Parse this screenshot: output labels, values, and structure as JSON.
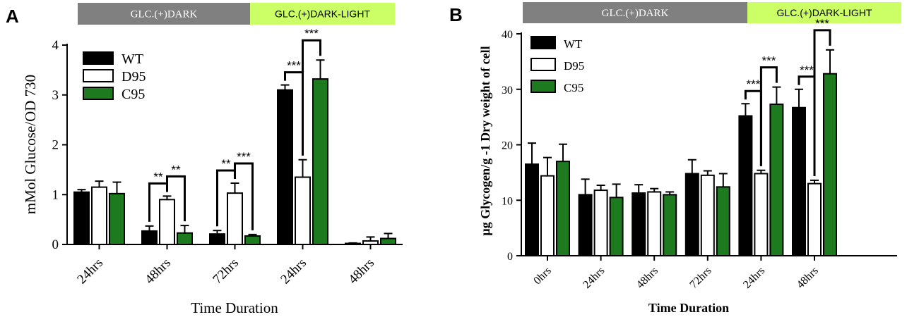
{
  "colors": {
    "WT": "#000000",
    "D95": "#ffffff",
    "C95": "#1e7a1e",
    "dark_band": "#808080",
    "light_band": "#ccff66"
  },
  "chart_data": [
    {
      "panel": "A",
      "type": "bar",
      "phases": [
        {
          "label": "GLC.(+)DARK",
          "span": [
            0,
            3
          ]
        },
        {
          "label": "GLC.(+)DARK-LIGHT",
          "span": [
            3,
            5
          ]
        }
      ],
      "categories": [
        "24hrs",
        "48hrs",
        "72hrs",
        "24hrs",
        "48hrs"
      ],
      "series": [
        {
          "name": "WT",
          "values": [
            1.05,
            0.27,
            0.21,
            3.1,
            0.02
          ],
          "errors": [
            0.05,
            0.1,
            0.07,
            0.1,
            0.01
          ]
        },
        {
          "name": "D95",
          "values": [
            1.15,
            0.9,
            1.03,
            1.35,
            0.07
          ],
          "errors": [
            0.12,
            0.07,
            0.2,
            0.35,
            0.08
          ]
        },
        {
          "name": "C95",
          "values": [
            1.02,
            0.23,
            0.17,
            3.32,
            0.12
          ],
          "errors": [
            0.23,
            0.15,
            0.03,
            0.38,
            0.1
          ]
        }
      ],
      "significance": [
        {
          "category": 1,
          "from": 0,
          "to": 1,
          "label": "**"
        },
        {
          "category": 1,
          "from": 1,
          "to": 2,
          "label": "**"
        },
        {
          "category": 2,
          "from": 0,
          "to": 1,
          "label": "**"
        },
        {
          "category": 2,
          "from": 1,
          "to": 2,
          "label": "***"
        },
        {
          "category": 3,
          "from": 0,
          "to": 1,
          "label": "***"
        },
        {
          "category": 3,
          "from": 1,
          "to": 2,
          "label": "***"
        }
      ],
      "xlabel": "Time Duration",
      "ylabel": "mMol Glucose/OD 730",
      "ylim": [
        0,
        4
      ],
      "yticks": [
        0,
        1,
        2,
        3,
        4
      ],
      "legend": "top-left"
    },
    {
      "panel": "B",
      "type": "bar",
      "phases": [
        {
          "label": "GLC.(+)DARK",
          "span": [
            0,
            4
          ]
        },
        {
          "label": "GLC.(+)DARK-LIGHT",
          "span": [
            4,
            6
          ]
        }
      ],
      "categories": [
        "0hrs",
        "24hrs",
        "48hrs",
        "72hrs",
        "24hrs",
        "48hrs"
      ],
      "series": [
        {
          "name": "WT",
          "values": [
            16.5,
            11.0,
            11.3,
            14.8,
            25.2,
            26.7
          ],
          "errors": [
            3.8,
            2.8,
            1.5,
            2.5,
            2.2,
            3.3
          ]
        },
        {
          "name": "D95",
          "values": [
            14.4,
            11.8,
            11.5,
            14.5,
            14.8,
            13.0
          ],
          "errors": [
            3.3,
            0.9,
            0.6,
            0.8,
            0.6,
            0.6
          ]
        },
        {
          "name": "C95",
          "values": [
            17.0,
            10.5,
            11.0,
            12.4,
            27.3,
            32.8
          ],
          "errors": [
            3.1,
            2.4,
            0.5,
            2.4,
            3.1,
            4.3
          ]
        }
      ],
      "significance": [
        {
          "category": 4,
          "from": 0,
          "to": 1,
          "label": "***"
        },
        {
          "category": 4,
          "from": 1,
          "to": 2,
          "label": "***"
        },
        {
          "category": 5,
          "from": 0,
          "to": 1,
          "label": "***"
        },
        {
          "category": 5,
          "from": 1,
          "to": 2,
          "label": "***"
        }
      ],
      "xlabel": "Time Duration",
      "ylabel": "µg Glycogen/g -1 Dry weight of cell",
      "ylim": [
        0,
        40
      ],
      "yticks": [
        0,
        10,
        20,
        30,
        40
      ],
      "legend": "top-left"
    }
  ]
}
